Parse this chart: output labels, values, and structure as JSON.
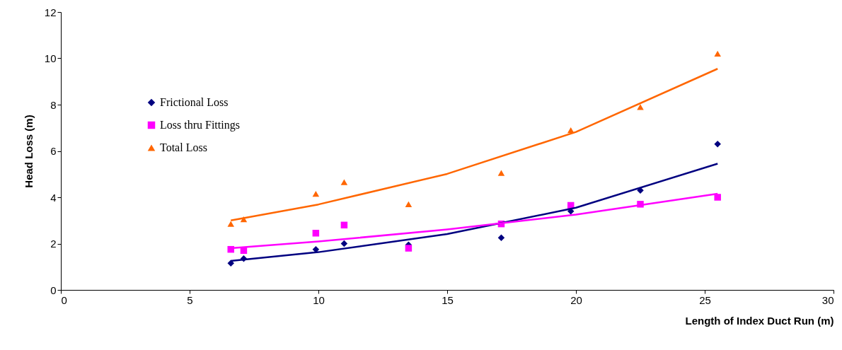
{
  "chart_data": {
    "type": "scatter",
    "xlabel": "Length of Index Duct Run (m)",
    "ylabel": "Head Loss (m)",
    "xlim": [
      0,
      30
    ],
    "xticks": [
      0,
      5,
      10,
      15,
      20,
      25,
      30
    ],
    "ylim": [
      0,
      12
    ],
    "yticks": [
      0,
      2,
      4,
      6,
      8,
      10,
      12
    ],
    "grid": false,
    "legend": "top left",
    "series": [
      {
        "name": "Frictional Loss",
        "marker": "diamond",
        "color": "#000080",
        "x": [
          6.6,
          7.1,
          9.9,
          11,
          13.5,
          17.1,
          19.8,
          22.5,
          25.5
        ],
        "values": [
          1.15,
          1.35,
          1.75,
          2.0,
          1.95,
          2.25,
          3.4,
          4.3,
          6.3
        ]
      },
      {
        "name": "Loss thru Fittings",
        "marker": "square",
        "color": "#ff00ff",
        "x": [
          6.6,
          7.1,
          9.9,
          11,
          13.5,
          17.1,
          19.8,
          22.5,
          25.5
        ],
        "values": [
          1.75,
          1.7,
          2.45,
          2.8,
          1.8,
          2.85,
          3.65,
          3.7,
          4.0
        ]
      },
      {
        "name": "Total Loss",
        "marker": "triangle",
        "color": "#ff6600",
        "x": [
          6.6,
          7.1,
          9.9,
          11,
          13.5,
          17.1,
          19.8,
          22.5,
          25.5
        ],
        "values": [
          2.85,
          3.05,
          4.15,
          4.65,
          3.7,
          5.05,
          6.9,
          7.9,
          10.2
        ]
      },
      {
        "type": "line",
        "color": "#000080",
        "x": [
          6.6,
          10,
          15,
          20,
          25.5
        ],
        "values": [
          1.25,
          1.63,
          2.41,
          3.55,
          5.45
        ]
      },
      {
        "type": "line",
        "color": "#ff00ff",
        "x": [
          6.6,
          10,
          15,
          20,
          25.5
        ],
        "values": [
          1.8,
          2.09,
          2.61,
          3.25,
          4.15
        ]
      },
      {
        "type": "line",
        "color": "#ff6600",
        "x": [
          6.6,
          10,
          15,
          20,
          25.5
        ],
        "values": [
          3.0,
          3.69,
          5.01,
          6.82,
          9.55
        ]
      }
    ]
  }
}
